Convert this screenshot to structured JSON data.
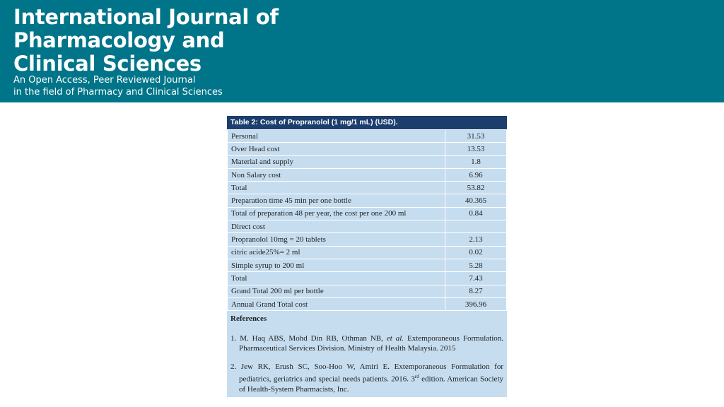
{
  "header": {
    "title_lines": [
      "International Journal of",
      "Pharmacology and",
      "Clinical Sciences"
    ],
    "subtitle_lines": [
      "An Open Access, Peer Reviewed Journal",
      "in the field of Pharmacy and Clinical Sciences"
    ]
  },
  "table": {
    "title": "Table 2: Cost of Propranolol (1 mg/1 mL) (USD).",
    "rows": [
      [
        "Personal",
        "31.53"
      ],
      [
        "Over Head cost",
        "13.53"
      ],
      [
        "Material and supply",
        "1.8"
      ],
      [
        "Non Salary cost",
        "6.96"
      ],
      [
        "Total",
        "53.82"
      ],
      [
        "Preparation time 45 min per one bottle",
        "40.365"
      ],
      [
        "Total of preparation 48 per year, the cost per one 200 ml",
        "0.84"
      ],
      [
        "Direct cost"
      ],
      [
        "Propranolol 10mg = 20 tablets",
        "2.13"
      ],
      [
        "citric acide25%= 2 ml",
        "0.02"
      ],
      [
        "Simple syrup to 200 ml",
        "5.28"
      ],
      [
        "Total",
        "7.43"
      ],
      [
        "Grand Total 200 ml per bottle",
        "8.27"
      ],
      [
        "Annual Grand Total cost",
        "396.96"
      ]
    ]
  },
  "references": {
    "heading": "References",
    "items": [
      [
        "1. M. Haq ABS, Mohd Din RB, Othman NB, ",
        "et al.",
        " Extemporaneous Formulation. Pharmaceutical Services Division. Ministry of Health Malaysia. 2015"
      ],
      [
        "2. Jew RK, Erush SC, Soo-Hoo W, Amiri E. Extemporaneous Formulation for pediatrics, geriatrics and special needs patients. 2016. 3",
        "rd",
        " edition. American Society of Health-System Pharmacists, Inc."
      ]
    ]
  }
}
